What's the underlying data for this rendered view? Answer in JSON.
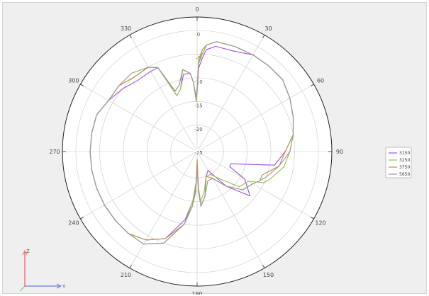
{
  "chart_data": {
    "type": "line",
    "subtype": "polar",
    "title": "",
    "angle_ticks": [
      "0",
      "30",
      "60",
      "90",
      "120",
      "150",
      "180",
      "210",
      "240",
      "270",
      "300",
      "330"
    ],
    "radial_ticks": [
      "0",
      "-5",
      "-10",
      "-15",
      "-20",
      "-25"
    ],
    "rlim": [
      -25,
      0
    ],
    "angle_direction": "clockwise",
    "zero_location": "top",
    "grid": true,
    "legend_position": "right",
    "series": [
      {
        "name": "3150",
        "color": "#a050e0",
        "theta": [
          0,
          1,
          3,
          5,
          10,
          20,
          30,
          40,
          50,
          60,
          70,
          80,
          90,
          100,
          110,
          115,
          120,
          130,
          140,
          150,
          160,
          170,
          176,
          178,
          180,
          182,
          185,
          190,
          200,
          210,
          220,
          230,
          240,
          250,
          260,
          270,
          280,
          290,
          300,
          310,
          320,
          330,
          335,
          340,
          345,
          350,
          355,
          357,
          359
        ],
        "r": [
          -13,
          -8,
          -6,
          -4,
          -3,
          -3,
          -2,
          -2,
          -2,
          -3,
          -4,
          -5,
          -7,
          -9,
          -18,
          -18,
          -14,
          -11,
          -16,
          -21,
          -20,
          -16,
          -14,
          -18,
          -23,
          -19,
          -15,
          -11,
          -6,
          -4,
          -3,
          -3,
          -3,
          -3,
          -3,
          -3,
          -3,
          -3,
          -4,
          -5,
          -6,
          -6,
          -6,
          -13,
          -12,
          -9,
          -9,
          -11,
          -15
        ]
      },
      {
        "name": "3250",
        "color": "#90c050",
        "theta": [
          0,
          1,
          3,
          5,
          10,
          20,
          30,
          40,
          50,
          60,
          70,
          80,
          90,
          100,
          110,
          115,
          120,
          130,
          140,
          150,
          160,
          170,
          176,
          178,
          180,
          182,
          185,
          190,
          200,
          210,
          220,
          230,
          240,
          250,
          260,
          270,
          280,
          290,
          300,
          310,
          320,
          330,
          335,
          340,
          345,
          350,
          355,
          357,
          359
        ],
        "r": [
          -12,
          -6,
          -4,
          -3,
          -2,
          -2,
          -2,
          -2,
          -2,
          -3,
          -4,
          -5,
          -6,
          -7,
          -9,
          -10,
          -13,
          -14,
          -18,
          -20,
          -20,
          -17,
          -15,
          -18,
          -23,
          -19,
          -15,
          -10,
          -5,
          -3,
          -3,
          -3,
          -3,
          -3,
          -3,
          -3,
          -3,
          -3,
          -4,
          -4,
          -5,
          -5,
          -6,
          -13,
          -12,
          -8,
          -9,
          -11,
          -15
        ]
      },
      {
        "name": "3750",
        "color": "#c09040",
        "theta": [
          0,
          1,
          3,
          5,
          10,
          20,
          30,
          40,
          50,
          60,
          70,
          80,
          90,
          100,
          110,
          115,
          120,
          130,
          140,
          150,
          160,
          170,
          176,
          178,
          180,
          182,
          185,
          190,
          200,
          210,
          220,
          230,
          240,
          250,
          260,
          270,
          280,
          290,
          300,
          310,
          320,
          330,
          335,
          340,
          345,
          350,
          355,
          357,
          359
        ],
        "r": [
          -13,
          -7,
          -4,
          -3,
          -2,
          -2,
          -2,
          -2,
          -2,
          -3,
          -4,
          -5,
          -7,
          -8,
          -11,
          -11,
          -12,
          -13,
          -16,
          -19,
          -20,
          -16,
          -14,
          -17,
          -24,
          -17,
          -14,
          -10,
          -6,
          -4,
          -3,
          -3,
          -3,
          -3,
          -3,
          -3,
          -3,
          -3,
          -4,
          -4,
          -5,
          -5,
          -6,
          -12,
          -11,
          -8,
          -9,
          -11,
          -14
        ]
      },
      {
        "name": "5650",
        "color": "#999999",
        "theta": [
          0,
          1,
          3,
          5,
          10,
          20,
          30,
          40,
          50,
          60,
          70,
          80,
          90,
          100,
          110,
          115,
          120,
          130,
          140,
          150,
          160,
          170,
          176,
          178,
          180,
          182,
          185,
          190,
          200,
          210,
          220,
          230,
          240,
          250,
          260,
          270,
          280,
          290,
          300,
          310,
          320,
          330,
          335,
          340,
          345,
          350,
          355,
          357,
          359
        ],
        "r": [
          -12,
          -7,
          -5,
          -3,
          -2,
          -2,
          -2,
          -2,
          -2,
          -3,
          -4,
          -5,
          -6,
          -8,
          -10,
          -11,
          -12,
          -13,
          -16,
          -19,
          -19,
          -16,
          -14,
          -17,
          -22,
          -18,
          -14,
          -10,
          -5,
          -3,
          -3,
          -3,
          -3,
          -3,
          -3,
          -3,
          -3,
          -3,
          -4,
          -4,
          -4,
          -5,
          -6,
          -12,
          -11,
          -8,
          -9,
          -11,
          -14
        ]
      }
    ]
  },
  "axes_indicator": {
    "vertical": "Z",
    "horizontal": "Y"
  }
}
